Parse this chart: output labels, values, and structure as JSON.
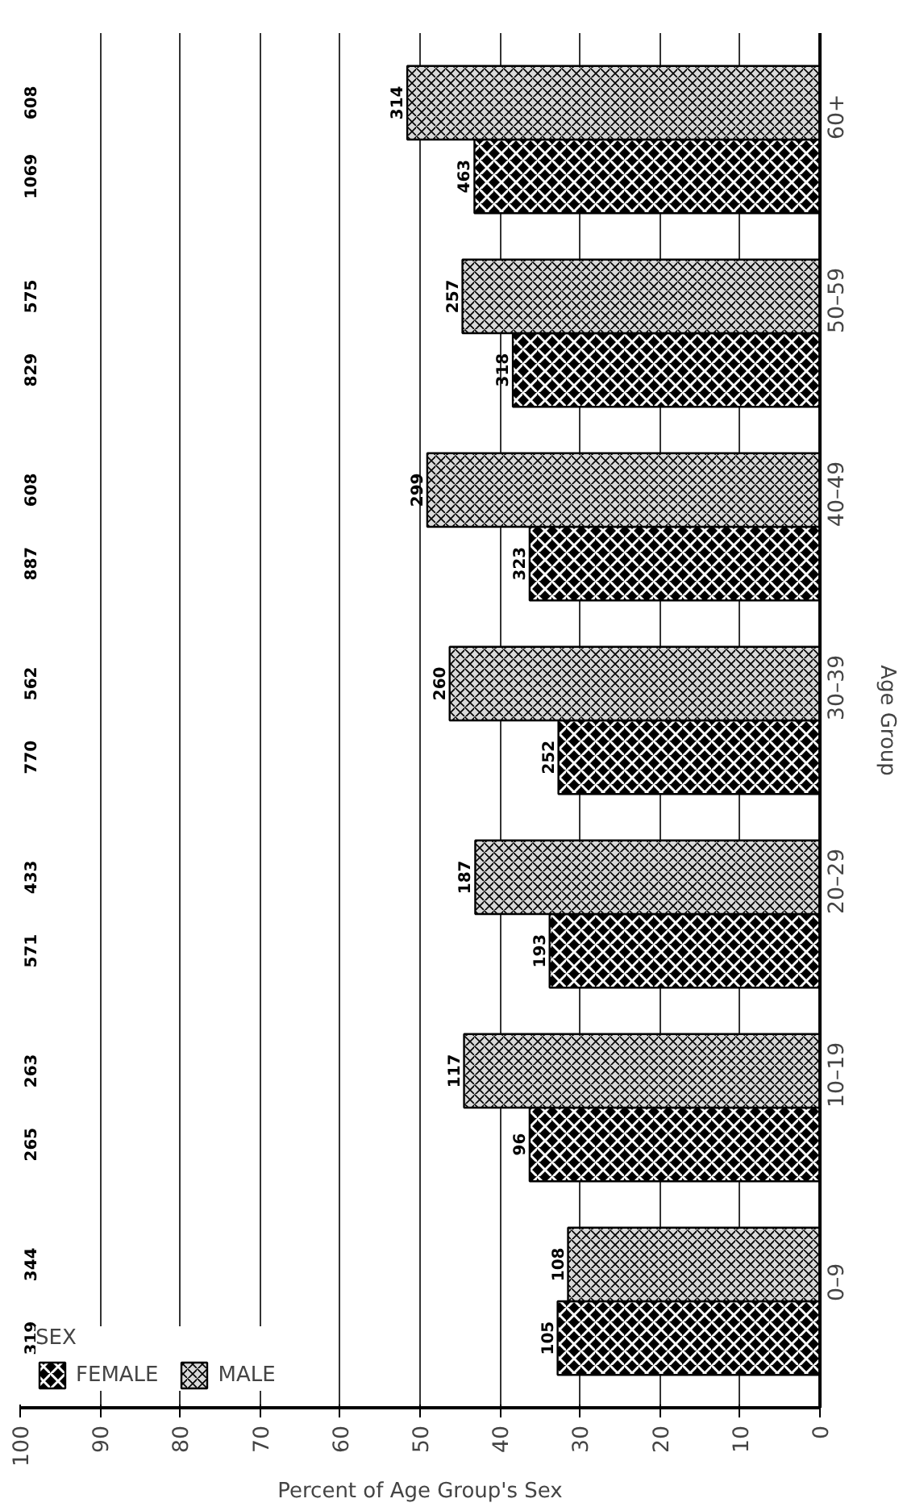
{
  "chart_data": {
    "type": "bar",
    "orientation": "horizontal",
    "xlabel": "Percent of Age Group's Sex",
    "ylabel": "Age Group",
    "legend_title": "SEX",
    "categories": [
      "60+",
      "50–59",
      "40–49",
      "30–39",
      "20–29",
      "10–19",
      "0–9"
    ],
    "series": [
      {
        "name": "FEMALE",
        "color": "#000000",
        "values": [
          43.2,
          38.4,
          36.3,
          32.7,
          33.8,
          36.3,
          32.8
        ]
      },
      {
        "name": "MALE",
        "color": "#d9d9d9",
        "values": [
          51.6,
          44.7,
          49.1,
          46.3,
          43.1,
          44.5,
          31.5
        ]
      }
    ],
    "xlim": [
      100,
      0
    ],
    "xticks": [
      100,
      90,
      80,
      70,
      60,
      50,
      40,
      30,
      20,
      10,
      0
    ],
    "grid": "x",
    "legend": "bottom left",
    "annotations": [
      "1069",
      "608",
      "829",
      "575",
      "887",
      "608",
      "770",
      "562",
      "571",
      "433",
      "265",
      "263",
      "319",
      "344",
      "463",
      "314",
      "318",
      "257",
      "323",
      "299",
      "252",
      "260",
      "193",
      "187",
      "96",
      "117",
      "105",
      "108"
    ]
  }
}
